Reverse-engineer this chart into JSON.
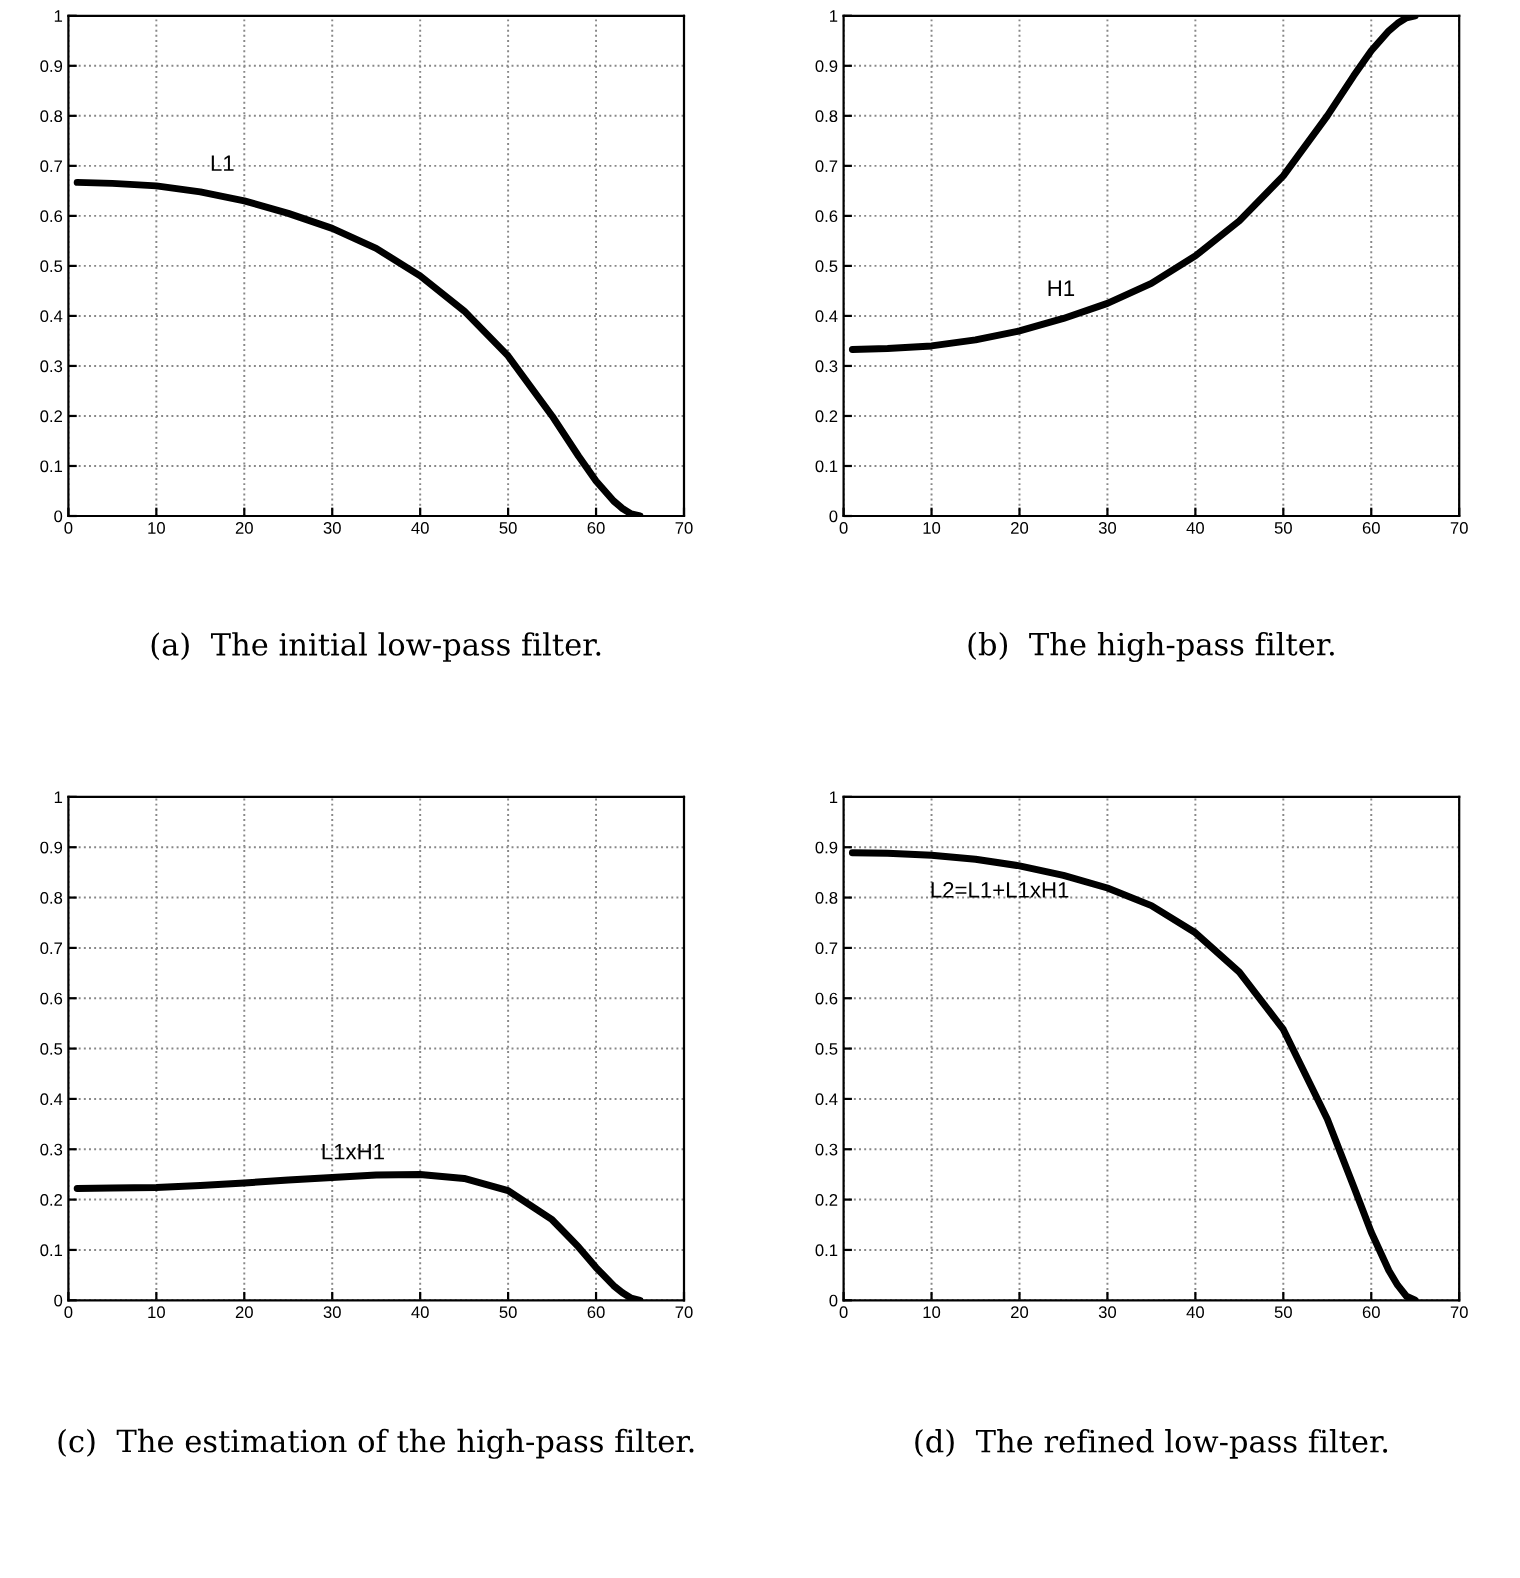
{
  "chart_data": [
    {
      "type": "line",
      "x": [
        1,
        5,
        10,
        15,
        20,
        25,
        30,
        35,
        40,
        45,
        50,
        55,
        58,
        60,
        62,
        63,
        64,
        65
      ],
      "series": [
        {
          "color": "#000000",
          "values": [
            0.667,
            0.665,
            0.66,
            0.648,
            0.63,
            0.605,
            0.575,
            0.535,
            0.48,
            0.41,
            0.32,
            0.2,
            0.12,
            0.07,
            0.03,
            0.015,
            0.004,
            0
          ]
        }
      ],
      "xlim": [
        0,
        70
      ],
      "ylim": [
        0,
        1
      ],
      "xticks": [
        0,
        10,
        20,
        30,
        40,
        50,
        60,
        70
      ],
      "yticks": [
        0,
        0.1,
        0.2,
        0.3,
        0.4,
        0.5,
        0.6,
        0.7,
        0.8,
        0.9,
        1
      ],
      "grid": true,
      "line_style": "solid",
      "annotations": [
        "L1",
        "(a)  The initial low-pass filter."
      ]
    },
    {
      "type": "line",
      "x": [
        1,
        5,
        10,
        15,
        20,
        25,
        30,
        35,
        40,
        45,
        50,
        55,
        58,
        60,
        62,
        63,
        64,
        65
      ],
      "series": [
        {
          "color": "#000000",
          "values": [
            0.333,
            0.335,
            0.34,
            0.352,
            0.37,
            0.395,
            0.425,
            0.465,
            0.52,
            0.59,
            0.68,
            0.8,
            0.88,
            0.93,
            0.97,
            0.985,
            0.996,
            1
          ]
        }
      ],
      "xlim": [
        0,
        70
      ],
      "ylim": [
        0,
        1
      ],
      "xticks": [
        0,
        10,
        20,
        30,
        40,
        50,
        60,
        70
      ],
      "yticks": [
        0,
        0.1,
        0.2,
        0.3,
        0.4,
        0.5,
        0.6,
        0.7,
        0.8,
        0.9,
        1
      ],
      "grid": true,
      "line_style": "solid",
      "annotations": [
        "H1",
        "(b)  The high-pass filter."
      ]
    },
    {
      "type": "line",
      "x": [
        1,
        5,
        10,
        15,
        20,
        25,
        30,
        35,
        40,
        45,
        50,
        55,
        58,
        60,
        62,
        63,
        64,
        65
      ],
      "series": [
        {
          "color": "#000000",
          "values": [
            0.222,
            0.223,
            0.224,
            0.228,
            0.233,
            0.239,
            0.244,
            0.249,
            0.25,
            0.242,
            0.218,
            0.16,
            0.106,
            0.065,
            0.029,
            0.015,
            0.004,
            0
          ]
        }
      ],
      "xlim": [
        0,
        70
      ],
      "ylim": [
        0,
        1
      ],
      "xticks": [
        0,
        10,
        20,
        30,
        40,
        50,
        60,
        70
      ],
      "yticks": [
        0,
        0.1,
        0.2,
        0.3,
        0.4,
        0.5,
        0.6,
        0.7,
        0.8,
        0.9,
        1
      ],
      "grid": true,
      "line_style": "solid",
      "annotations": [
        "L1xH1",
        "(c)  The estimation of the high-pass filter."
      ]
    },
    {
      "type": "line",
      "x": [
        1,
        5,
        10,
        15,
        20,
        25,
        30,
        35,
        40,
        45,
        50,
        55,
        58,
        60,
        62,
        63,
        64,
        65
      ],
      "series": [
        {
          "color": "#000000",
          "values": [
            0.889,
            0.888,
            0.884,
            0.876,
            0.863,
            0.844,
            0.819,
            0.784,
            0.73,
            0.652,
            0.538,
            0.36,
            0.226,
            0.135,
            0.059,
            0.03,
            0.008,
            0
          ]
        }
      ],
      "xlim": [
        0,
        70
      ],
      "ylim": [
        0,
        1
      ],
      "xticks": [
        0,
        10,
        20,
        30,
        40,
        50,
        60,
        70
      ],
      "yticks": [
        0,
        0.1,
        0.2,
        0.3,
        0.4,
        0.5,
        0.6,
        0.7,
        0.8,
        0.9,
        1
      ],
      "grid": true,
      "line_style": "solid",
      "annotations": [
        "L2=L1+L1xH1",
        "(d)  The refined low-pass filter."
      ]
    }
  ]
}
